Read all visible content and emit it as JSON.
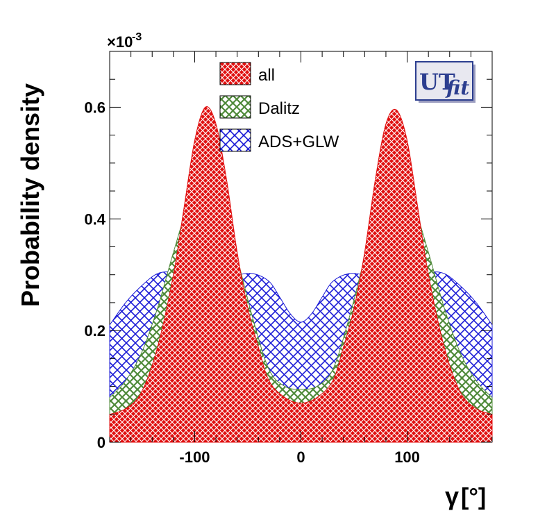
{
  "chart_data": {
    "type": "area",
    "ylabel": "Probability density",
    "xlabel_symbol": "γ",
    "xlabel_unit": "[°]",
    "y_exponent_base": "×10",
    "y_exponent_power": "-3",
    "xlim": [
      -180,
      180
    ],
    "ylim": [
      0,
      0.0007
    ],
    "x_ticks": [
      -100,
      0,
      100
    ],
    "x_tick_labels": [
      "-100",
      "0",
      "100"
    ],
    "y_ticks": [
      0,
      0.0002,
      0.0004,
      0.0006
    ],
    "y_tick_labels": [
      "0",
      "0.2",
      "0.4",
      "0.6"
    ],
    "legend_position": "top-center",
    "series": [
      {
        "name": "ADS+GLW",
        "color": "#1a1ad6",
        "fill": "crosshatch",
        "x": [
          -180,
          -165,
          -150,
          -135,
          -120,
          -105,
          -90,
          -75,
          -60,
          -45,
          -30,
          -20,
          -10,
          0,
          10,
          20,
          30,
          45,
          60,
          75,
          90,
          105,
          120,
          135,
          150,
          165,
          180
        ],
        "y": [
          0.00021,
          0.00025,
          0.00028,
          0.000302,
          0.000305,
          0.000302,
          0.0003,
          0.000299,
          0.0003,
          0.000302,
          0.000288,
          0.00026,
          0.00023,
          0.000215,
          0.00023,
          0.00026,
          0.000288,
          0.000302,
          0.0003,
          0.000299,
          0.0003,
          0.000302,
          0.000305,
          0.000302,
          0.00028,
          0.00025,
          0.00021
        ]
      },
      {
        "name": "Dalitz",
        "color": "#4f8a3a",
        "fill": "crosshatch",
        "x": [
          -180,
          -165,
          -150,
          -135,
          -120,
          -105,
          -90,
          -75,
          -60,
          -45,
          -30,
          -15,
          0,
          15,
          30,
          45,
          60,
          75,
          90,
          105,
          120,
          135,
          150,
          165,
          180
        ],
        "y": [
          8e-05,
          0.00011,
          0.00016,
          0.00024,
          0.00034,
          0.00043,
          0.00047,
          0.00043,
          0.00033,
          0.00022,
          0.00013,
          0.0001,
          9.5e-05,
          0.0001,
          0.00013,
          0.00022,
          0.00033,
          0.00043,
          0.00047,
          0.00043,
          0.00034,
          0.00024,
          0.00016,
          0.00011,
          8e-05
        ]
      },
      {
        "name": "all",
        "color": "#e01010",
        "fill": "crosshatch",
        "x": [
          -180,
          -165,
          -150,
          -135,
          -120,
          -110,
          -100,
          -90,
          -80,
          -70,
          -60,
          -50,
          -40,
          -30,
          -15,
          0,
          15,
          30,
          40,
          50,
          60,
          70,
          80,
          90,
          100,
          110,
          120,
          135,
          150,
          165,
          180
        ],
        "y": [
          5e-05,
          6e-05,
          9e-05,
          0.00017,
          0.0003,
          0.00042,
          0.00054,
          0.0006,
          0.00057,
          0.00047,
          0.00034,
          0.00024,
          0.00017,
          0.00011,
          8e-05,
          7e-05,
          8e-05,
          0.00011,
          0.00017,
          0.00024,
          0.00034,
          0.00047,
          0.00057,
          0.000595,
          0.00054,
          0.00042,
          0.0003,
          0.00017,
          9e-05,
          6e-05,
          5e-05
        ]
      }
    ],
    "legend_entries": [
      "all",
      "Dalitz",
      "ADS+GLW"
    ]
  },
  "logo": {
    "main": "UT",
    "sub": "fit"
  },
  "colors": {
    "blue": "#1a1ad6",
    "green": "#4f8a3a",
    "red": "#e01010",
    "logo_blue": "#2c3e8f"
  }
}
